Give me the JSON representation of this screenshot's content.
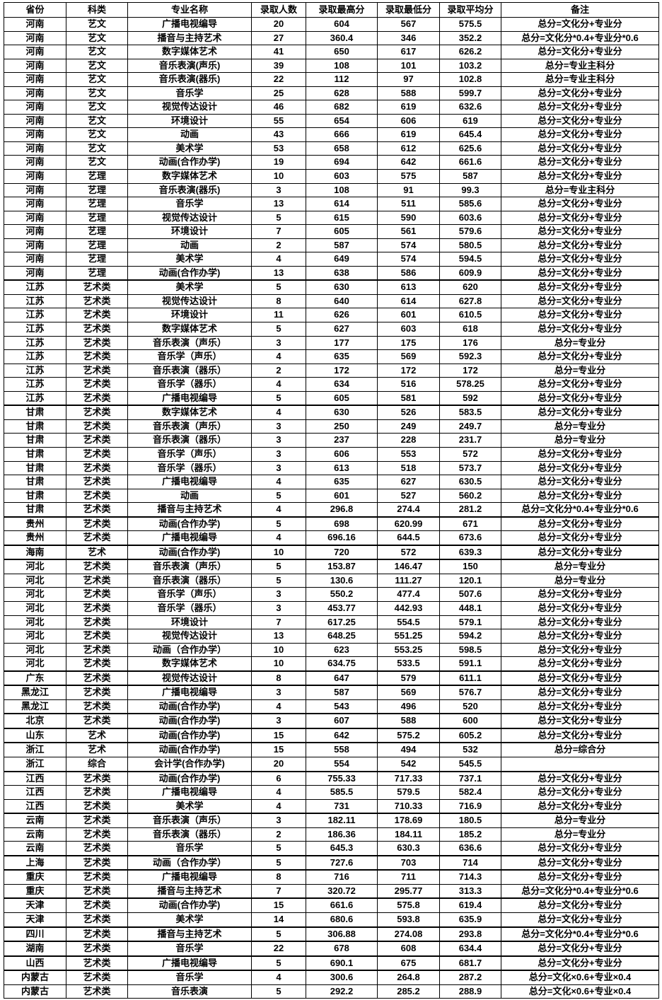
{
  "table": {
    "columns": [
      "省份",
      "科类",
      "专业名称",
      "录取人数",
      "录取最高分",
      "录取最低分",
      "录取平均分",
      "备注"
    ],
    "rows": [
      [
        "河南",
        "艺文",
        "广播电视编导",
        "20",
        "604",
        "567",
        "575.5",
        "总分=文化分+专业分"
      ],
      [
        "河南",
        "艺文",
        "播音与主持艺术",
        "27",
        "360.4",
        "346",
        "352.2",
        "总分=文化分*0.4+专业分*0.6"
      ],
      [
        "河南",
        "艺文",
        "数字媒体艺术",
        "41",
        "650",
        "617",
        "626.2",
        "总分=文化分+专业分"
      ],
      [
        "河南",
        "艺文",
        "音乐表演(声乐)",
        "39",
        "108",
        "101",
        "103.2",
        "总分=专业主科分"
      ],
      [
        "河南",
        "艺文",
        "音乐表演(器乐)",
        "22",
        "112",
        "97",
        "102.8",
        "总分=专业主科分"
      ],
      [
        "河南",
        "艺文",
        "音乐学",
        "25",
        "628",
        "588",
        "599.7",
        "总分=文化分+专业分"
      ],
      [
        "河南",
        "艺文",
        "视觉传达设计",
        "46",
        "682",
        "619",
        "632.6",
        "总分=文化分+专业分"
      ],
      [
        "河南",
        "艺文",
        "环境设计",
        "55",
        "654",
        "606",
        "619",
        "总分=文化分+专业分"
      ],
      [
        "河南",
        "艺文",
        "动画",
        "43",
        "666",
        "619",
        "645.4",
        "总分=文化分+专业分"
      ],
      [
        "河南",
        "艺文",
        "美术学",
        "53",
        "658",
        "612",
        "625.6",
        "总分=文化分+专业分"
      ],
      [
        "河南",
        "艺文",
        "动画(合作办学)",
        "19",
        "694",
        "642",
        "661.6",
        "总分=文化分+专业分"
      ],
      [
        "河南",
        "艺理",
        "数字媒体艺术",
        "10",
        "603",
        "575",
        "587",
        "总分=文化分+专业分"
      ],
      [
        "河南",
        "艺理",
        "音乐表演(器乐)",
        "3",
        "108",
        "91",
        "99.3",
        "总分=专业主科分"
      ],
      [
        "河南",
        "艺理",
        "音乐学",
        "13",
        "614",
        "511",
        "585.6",
        "总分=文化分+专业分"
      ],
      [
        "河南",
        "艺理",
        "视觉传达设计",
        "5",
        "615",
        "590",
        "603.6",
        "总分=文化分+专业分"
      ],
      [
        "河南",
        "艺理",
        "环境设计",
        "7",
        "605",
        "561",
        "579.6",
        "总分=文化分+专业分"
      ],
      [
        "河南",
        "艺理",
        "动画",
        "2",
        "587",
        "574",
        "580.5",
        "总分=文化分+专业分"
      ],
      [
        "河南",
        "艺理",
        "美术学",
        "4",
        "649",
        "574",
        "594.5",
        "总分=文化分+专业分"
      ],
      [
        "河南",
        "艺理",
        "动画(合作办学)",
        "13",
        "638",
        "586",
        "609.9",
        "总分=文化分+专业分"
      ],
      [
        "江苏",
        "艺术类",
        "美术学",
        "5",
        "630",
        "613",
        "620",
        "总分=文化分+专业分"
      ],
      [
        "江苏",
        "艺术类",
        "视觉传达设计",
        "8",
        "640",
        "614",
        "627.8",
        "总分=文化分+专业分"
      ],
      [
        "江苏",
        "艺术类",
        "环境设计",
        "11",
        "626",
        "601",
        "610.5",
        "总分=文化分+专业分"
      ],
      [
        "江苏",
        "艺术类",
        "数字媒体艺术",
        "5",
        "627",
        "603",
        "618",
        "总分=文化分+专业分"
      ],
      [
        "江苏",
        "艺术类",
        "音乐表演（声乐）",
        "3",
        "177",
        "175",
        "176",
        "总分=专业分"
      ],
      [
        "江苏",
        "艺术类",
        "音乐学（声乐）",
        "4",
        "635",
        "569",
        "592.3",
        "总分=文化分+专业分"
      ],
      [
        "江苏",
        "艺术类",
        "音乐表演（器乐）",
        "2",
        "172",
        "172",
        "172",
        "总分=专业分"
      ],
      [
        "江苏",
        "艺术类",
        "音乐学（器乐）",
        "4",
        "634",
        "516",
        "578.25",
        "总分=文化分+专业分"
      ],
      [
        "江苏",
        "艺术类",
        "广播电视编导",
        "5",
        "605",
        "581",
        "592",
        "总分=文化分+专业分"
      ],
      [
        "甘肃",
        "艺术类",
        "数字媒体艺术",
        "4",
        "630",
        "526",
        "583.5",
        "总分=文化分+专业分"
      ],
      [
        "甘肃",
        "艺术类",
        "音乐表演（声乐）",
        "3",
        "250",
        "249",
        "249.7",
        "总分=专业分"
      ],
      [
        "甘肃",
        "艺术类",
        "音乐表演（器乐）",
        "3",
        "237",
        "228",
        "231.7",
        "总分=专业分"
      ],
      [
        "甘肃",
        "艺术类",
        "音乐学（声乐）",
        "3",
        "606",
        "553",
        "572",
        "总分=文化分+专业分"
      ],
      [
        "甘肃",
        "艺术类",
        "音乐学（器乐）",
        "3",
        "613",
        "518",
        "573.7",
        "总分=文化分+专业分"
      ],
      [
        "甘肃",
        "艺术类",
        "广播电视编导",
        "4",
        "635",
        "627",
        "630.5",
        "总分=文化分+专业分"
      ],
      [
        "甘肃",
        "艺术类",
        "动画",
        "5",
        "601",
        "527",
        "560.2",
        "总分=文化分+专业分"
      ],
      [
        "甘肃",
        "艺术类",
        "播音与主持艺术",
        "4",
        "296.8",
        "274.4",
        "281.2",
        "总分=文化分*0.4+专业分*0.6"
      ],
      [
        "贵州",
        "艺术类",
        "动画(合作办学)",
        "5",
        "698",
        "620.99",
        "671",
        "总分=文化分+专业分"
      ],
      [
        "贵州",
        "艺术类",
        "广播电视编导",
        "4",
        "696.16",
        "644.5",
        "673.6",
        "总分=文化分+专业分"
      ],
      [
        "海南",
        "艺术",
        "动画(合作办学)",
        "10",
        "720",
        "572",
        "639.3",
        "总分=文化分+专业分"
      ],
      [
        "河北",
        "艺术类",
        "音乐表演（声乐）",
        "5",
        "153.87",
        "146.47",
        "150",
        "总分=专业分"
      ],
      [
        "河北",
        "艺术类",
        "音乐表演（器乐）",
        "5",
        "130.6",
        "111.27",
        "120.1",
        "总分=专业分"
      ],
      [
        "河北",
        "艺术类",
        "音乐学（声乐）",
        "3",
        "550.2",
        "477.4",
        "507.6",
        "总分=文化分+专业分"
      ],
      [
        "河北",
        "艺术类",
        "音乐学（器乐）",
        "3",
        "453.77",
        "442.93",
        "448.1",
        "总分=文化分+专业分"
      ],
      [
        "河北",
        "艺术类",
        "环境设计",
        "7",
        "617.25",
        "554.5",
        "579.1",
        "总分=文化分+专业分"
      ],
      [
        "河北",
        "艺术类",
        "视觉传达设计",
        "13",
        "648.25",
        "551.25",
        "594.2",
        "总分=文化分+专业分"
      ],
      [
        "河北",
        "艺术类",
        "动画（合作办学）",
        "10",
        "623",
        "553.25",
        "598.5",
        "总分=文化分+专业分"
      ],
      [
        "河北",
        "艺术类",
        "数字媒体艺术",
        "10",
        "634.75",
        "533.5",
        "591.1",
        "总分=文化分+专业分"
      ],
      [
        "广东",
        "艺术类",
        "视觉传达设计",
        "8",
        "647",
        "579",
        "611.1",
        "总分=文化分+专业分"
      ],
      [
        "黑龙江",
        "艺术类",
        "广播电视编导",
        "3",
        "587",
        "569",
        "576.7",
        "总分=文化分+专业分"
      ],
      [
        "黑龙江",
        "艺术类",
        "动画(合作办学)",
        "4",
        "543",
        "496",
        "520",
        "总分=文化分+专业分"
      ],
      [
        "北京",
        "艺术类",
        "动画(合作办学)",
        "3",
        "607",
        "588",
        "600",
        "总分=文化分+专业分"
      ],
      [
        "山东",
        "艺术",
        "动画(合作办学)",
        "15",
        "642",
        "575.2",
        "605.2",
        "总分=文化分+专业分"
      ],
      [
        "浙江",
        "艺术",
        "动画(合作办学)",
        "15",
        "558",
        "494",
        "532",
        "总分=综合分"
      ],
      [
        "浙江",
        "综合",
        "会计学(合作办学)",
        "20",
        "554",
        "542",
        "545.5",
        ""
      ],
      [
        "江西",
        "艺术类",
        "动画(合作办学)",
        "6",
        "755.33",
        "717.33",
        "737.1",
        "总分=文化分+专业分"
      ],
      [
        "江西",
        "艺术类",
        "广播电视编导",
        "4",
        "585.5",
        "579.5",
        "582.4",
        "总分=文化分+专业分"
      ],
      [
        "江西",
        "艺术类",
        "美术学",
        "4",
        "731",
        "710.33",
        "716.9",
        "总分=文化分+专业分"
      ],
      [
        "云南",
        "艺术类",
        "音乐表演（声乐）",
        "3",
        "182.11",
        "178.69",
        "180.5",
        "总分=专业分"
      ],
      [
        "云南",
        "艺术类",
        "音乐表演（器乐）",
        "2",
        "186.36",
        "184.11",
        "185.2",
        "总分=专业分"
      ],
      [
        "云南",
        "艺术类",
        "音乐学",
        "5",
        "645.3",
        "630.3",
        "636.6",
        "总分=文化分+专业分"
      ],
      [
        "上海",
        "艺术类",
        "动画（合作办学）",
        "5",
        "727.6",
        "703",
        "714",
        "总分=文化分+专业分"
      ],
      [
        "重庆",
        "艺术类",
        "广播电视编导",
        "8",
        "716",
        "711",
        "714.3",
        "总分=文化分+专业分"
      ],
      [
        "重庆",
        "艺术类",
        "播音与主持艺术",
        "7",
        "320.72",
        "295.77",
        "313.3",
        "总分=文化分*0.4+专业分*0.6"
      ],
      [
        "天津",
        "艺术类",
        "动画(合作办学)",
        "15",
        "661.6",
        "575.8",
        "619.4",
        "总分=文化分+专业分"
      ],
      [
        "天津",
        "艺术类",
        "美术学",
        "14",
        "680.6",
        "593.8",
        "635.9",
        "总分=文化分+专业分"
      ],
      [
        "四川",
        "艺术类",
        "播音与主持艺术",
        "5",
        "306.88",
        "274.08",
        "293.8",
        "总分=文化分*0.4+专业分*0.6"
      ],
      [
        "湖南",
        "艺术类",
        "音乐学",
        "22",
        "678",
        "608",
        "634.4",
        "总分=文化分+专业分"
      ],
      [
        "山西",
        "艺术类",
        "广播电视编导",
        "5",
        "690.1",
        "675",
        "681.7",
        "总分=文化分+专业分"
      ],
      [
        "内蒙古",
        "艺术类",
        "音乐学",
        "4",
        "300.6",
        "264.8",
        "287.2",
        "总分=文化×0.6+专业×0.4"
      ],
      [
        "内蒙古",
        "艺术类",
        "音乐表演",
        "5",
        "292.2",
        "285.2",
        "288.9",
        "总分=文化×0.6+专业×0.4"
      ]
    ]
  },
  "colors": {
    "border": "#000000",
    "background": "#ffffff",
    "text": "#000000"
  }
}
